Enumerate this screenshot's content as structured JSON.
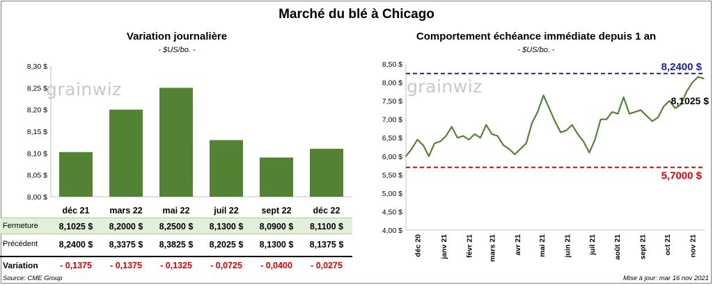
{
  "title": "Marché du blé à Chicago",
  "logo_text": "grainwiz",
  "left_chart": {
    "subtitle": "Variation journalière",
    "units": "- $US/bo. -"
  },
  "right_chart": {
    "subtitle": "Comportement échéance immédiate depuis 1 an",
    "units": "- $US/bo. -",
    "high_label": "8,2400 $",
    "low_label": "5,7000 $",
    "last_label": "8,1025 $"
  },
  "table": {
    "close_label": "Fermeture",
    "prev_label": "Précédent",
    "var_label": "Variation",
    "close": [
      "8,1025 $",
      "8,2000 $",
      "8,2500 $",
      "8,1300 $",
      "8,0900 $",
      "8,1100 $"
    ],
    "prev": [
      "8,2400 $",
      "8,3375 $",
      "8,3825 $",
      "8,2025 $",
      "8,1300 $",
      "8,1375 $"
    ],
    "var": [
      "- 0,1375",
      "- 0,1375",
      "- 0,1325",
      "- 0,0725",
      "- 0,0400",
      "- 0,0275"
    ]
  },
  "footer": {
    "source": "Source: CME Group",
    "updated": "Mise à jour: mar 16 nov 2021"
  },
  "colors": {
    "bar": "#548235",
    "line": "#548235",
    "high": "#1f1fa0",
    "low": "#e00000"
  },
  "chart_data": [
    {
      "type": "bar",
      "title": "Variation journalière",
      "categories": [
        "déc 21",
        "mars 22",
        "mai 22",
        "juil 22",
        "sept 22",
        "déc 22"
      ],
      "values": [
        8.1025,
        8.2,
        8.25,
        8.13,
        8.09,
        8.11
      ],
      "ylim": [
        8.0,
        8.3
      ],
      "yticks": [
        "8,00 $",
        "8,05 $",
        "8,10 $",
        "8,15 $",
        "8,20 $",
        "8,25 $",
        "8,30 $"
      ],
      "ytick_values": [
        8.0,
        8.05,
        8.1,
        8.15,
        8.2,
        8.25,
        8.3
      ]
    },
    {
      "type": "line",
      "title": "Comportement échéance immédiate depuis 1 an",
      "ylim": [
        4.0,
        8.5
      ],
      "yticks": [
        "4,00 $",
        "4,50 $",
        "5,00 $",
        "5,50 $",
        "6,00 $",
        "6,50 $",
        "7,00 $",
        "7,50 $",
        "8,00 $",
        "8,50 $"
      ],
      "ytick_values": [
        4.0,
        4.5,
        5.0,
        5.5,
        6.0,
        6.5,
        7.0,
        7.5,
        8.0,
        8.5
      ],
      "xticks": [
        "déc 20",
        "janv 21",
        "févr 21",
        "mars 21",
        "avr 21",
        "mai 21",
        "juin 21",
        "juil 21",
        "août 21",
        "sept 21",
        "oct 21",
        "nov 21"
      ],
      "high": 8.24,
      "low": 5.7,
      "x": [
        "2020-11-16",
        "2020-11-23",
        "2020-11-30",
        "2020-12-07",
        "2020-12-14",
        "2020-12-21",
        "2020-12-28",
        "2021-01-04",
        "2021-01-11",
        "2021-01-18",
        "2021-01-25",
        "2021-02-01",
        "2021-02-08",
        "2021-02-15",
        "2021-02-22",
        "2021-03-01",
        "2021-03-08",
        "2021-03-15",
        "2021-03-22",
        "2021-03-29",
        "2021-04-05",
        "2021-04-12",
        "2021-04-19",
        "2021-04-26",
        "2021-05-03",
        "2021-05-10",
        "2021-05-17",
        "2021-05-24",
        "2021-05-31",
        "2021-06-07",
        "2021-06-14",
        "2021-06-21",
        "2021-06-28",
        "2021-07-05",
        "2021-07-12",
        "2021-07-19",
        "2021-07-26",
        "2021-08-02",
        "2021-08-09",
        "2021-08-16",
        "2021-08-23",
        "2021-08-30",
        "2021-09-06",
        "2021-09-13",
        "2021-09-20",
        "2021-09-27",
        "2021-10-04",
        "2021-10-11",
        "2021-10-18",
        "2021-10-25",
        "2021-11-01",
        "2021-11-08",
        "2021-11-15"
      ],
      "y": [
        6.0,
        6.2,
        6.45,
        6.3,
        6.0,
        6.35,
        6.4,
        6.55,
        6.8,
        6.5,
        6.55,
        6.45,
        6.6,
        6.5,
        6.85,
        6.6,
        6.55,
        6.3,
        6.2,
        6.05,
        6.2,
        6.35,
        6.9,
        7.2,
        7.65,
        7.3,
        6.95,
        6.65,
        6.7,
        6.85,
        6.6,
        6.4,
        6.1,
        6.45,
        7.0,
        7.0,
        7.2,
        7.15,
        7.6,
        7.15,
        7.2,
        7.25,
        7.1,
        6.95,
        7.05,
        7.35,
        7.5,
        7.3,
        7.4,
        7.75,
        8.0,
        8.15,
        8.1025
      ]
    }
  ]
}
